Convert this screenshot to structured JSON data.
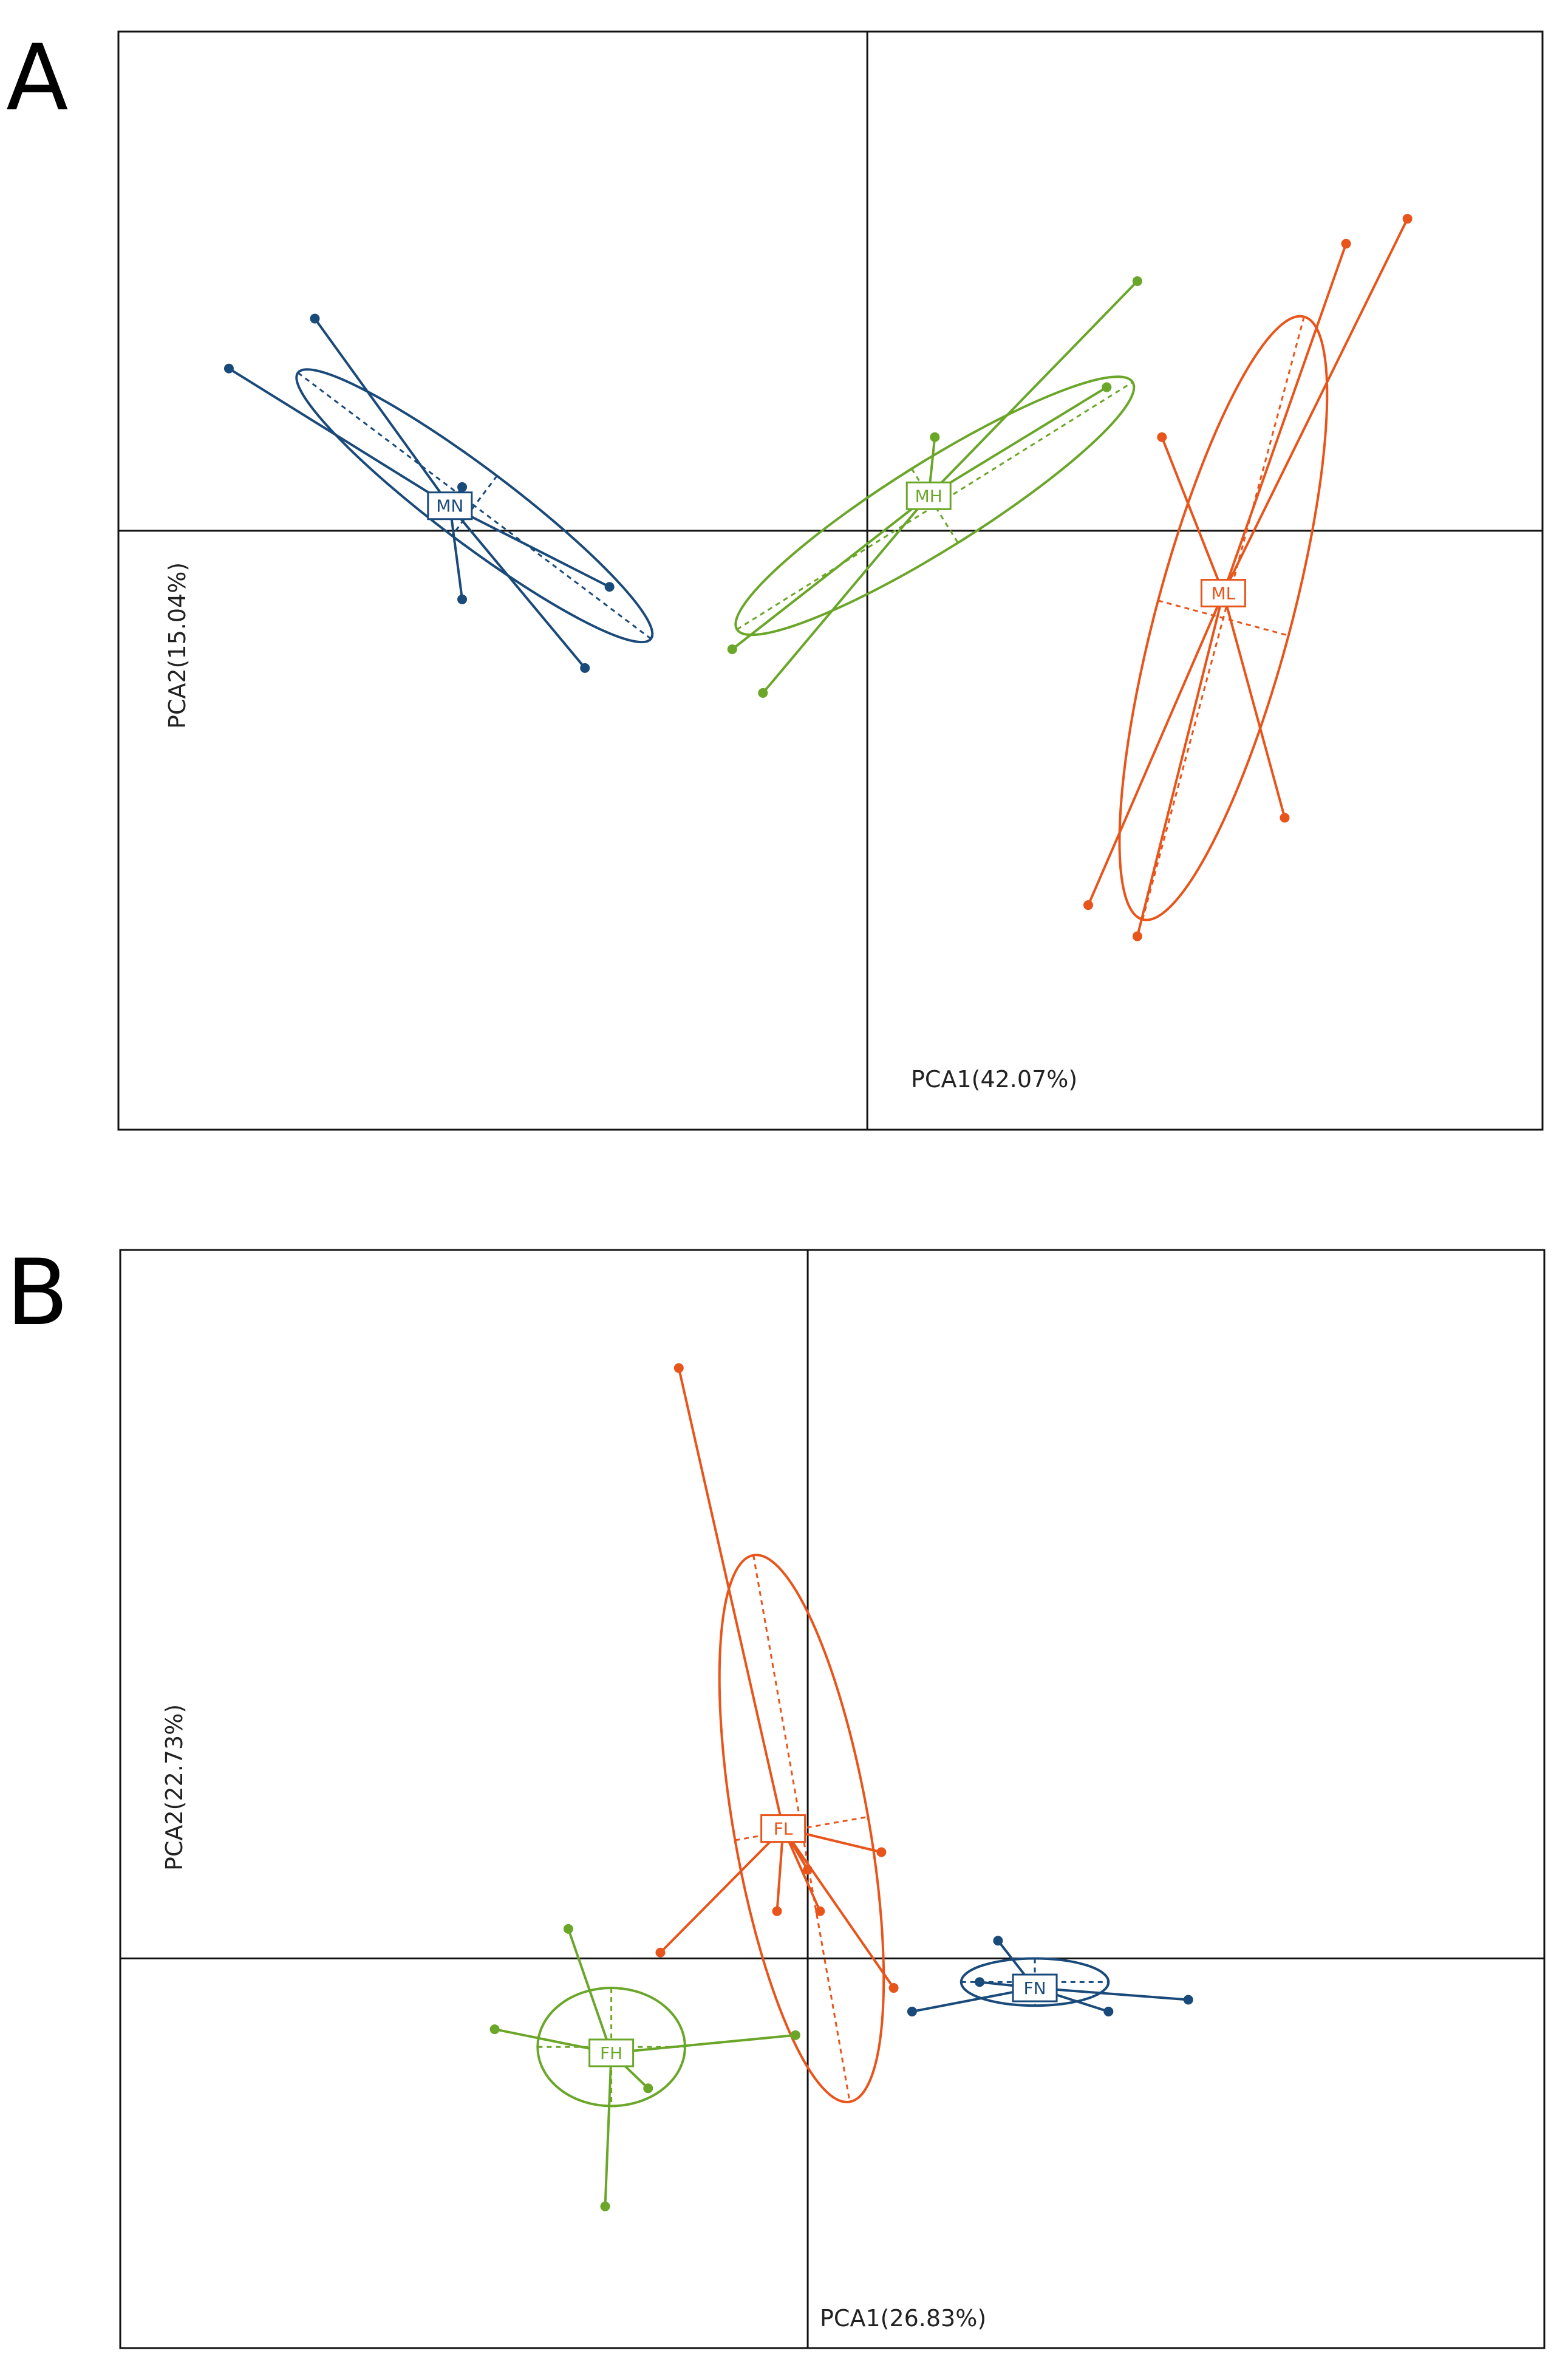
{
  "chart_data": [
    {
      "type": "scatter",
      "panel": "A",
      "xlabel": "PCA1(42.07%)",
      "ylabel": "PCA2(15.04%)",
      "xlim": [
        -6.1,
        5.5
      ],
      "ylim": [
        -4.8,
        4.0
      ],
      "axes_cross_at": [
        0,
        0
      ],
      "grid": false,
      "series": [
        {
          "name": "MN",
          "color": "#1a4a7a",
          "centroid": [
            -3.4,
            0.2
          ],
          "points": [
            [
              -5.2,
              1.3
            ],
            [
              -4.5,
              1.7
            ],
            [
              -3.3,
              0.35
            ],
            [
              -3.3,
              -0.55
            ],
            [
              -2.1,
              -0.45
            ],
            [
              -2.3,
              -1.1
            ]
          ],
          "ellipse": {
            "cx": -3.2,
            "cy": 0.2,
            "rx": 1.8,
            "ry": 0.3,
            "angle_deg": 37
          }
        },
        {
          "name": "MH",
          "color": "#6aa628",
          "centroid": [
            0.5,
            0.28
          ],
          "points": [
            [
              -1.1,
              -0.95
            ],
            [
              -0.85,
              -1.3
            ],
            [
              0.55,
              0.75
            ],
            [
              2.2,
              2.0
            ],
            [
              1.95,
              1.15
            ]
          ],
          "ellipse": {
            "cx": 0.55,
            "cy": 0.2,
            "rx": 1.9,
            "ry": 0.35,
            "angle_deg": -32
          }
        },
        {
          "name": "ML",
          "color": "#e8541a",
          "centroid": [
            2.9,
            -0.5
          ],
          "points": [
            [
              2.4,
              0.75
            ],
            [
              3.9,
              2.3
            ],
            [
              4.4,
              2.5
            ],
            [
              3.4,
              -2.3
            ],
            [
              1.8,
              -3.0
            ],
            [
              2.2,
              -3.25
            ]
          ],
          "ellipse": {
            "cx": 2.9,
            "cy": -0.7,
            "rx": 0.55,
            "ry": 2.5,
            "angle_deg": 15
          }
        }
      ]
    },
    {
      "type": "scatter",
      "panel": "B",
      "xlabel": "PCA1(26.83%)",
      "ylabel": "PCA2(22.73%)",
      "xlim": [
        -5.6,
        6.0
      ],
      "ylim": [
        -3.3,
        6.0
      ],
      "axes_cross_at": [
        0,
        0
      ],
      "grid": false,
      "series": [
        {
          "name": "FL",
          "color": "#e8541a",
          "centroid": [
            -0.2,
            1.1
          ],
          "points": [
            [
              -1.05,
              5.0
            ],
            [
              0.6,
              0.9
            ],
            [
              0.0,
              0.75
            ],
            [
              -0.25,
              0.4
            ],
            [
              0.1,
              0.4
            ],
            [
              -1.2,
              0.05
            ],
            [
              0.7,
              -0.25
            ]
          ],
          "ellipse": {
            "cx": -0.05,
            "cy": 1.1,
            "rx": 0.55,
            "ry": 2.35,
            "angle_deg": -10
          }
        },
        {
          "name": "FH",
          "color": "#6aa628",
          "centroid": [
            -1.6,
            -0.8
          ],
          "points": [
            [
              -1.95,
              0.25
            ],
            [
              -2.55,
              -0.6
            ],
            [
              -1.7,
              -0.85
            ],
            [
              -1.3,
              -1.1
            ],
            [
              -0.1,
              -0.65
            ],
            [
              -1.65,
              -2.1
            ]
          ],
          "ellipse": {
            "cx": -1.6,
            "cy": -0.75,
            "rx": 0.6,
            "ry": 0.5,
            "angle_deg": 0
          }
        },
        {
          "name": "FN",
          "color": "#1a4a7a",
          "centroid": [
            1.85,
            -0.25
          ],
          "points": [
            [
              1.55,
              0.15
            ],
            [
              1.4,
              -0.2
            ],
            [
              0.85,
              -0.45
            ],
            [
              2.45,
              -0.45
            ],
            [
              3.1,
              -0.35
            ]
          ],
          "ellipse": {
            "cx": 1.85,
            "cy": -0.2,
            "rx": 0.6,
            "ry": 0.2,
            "angle_deg": 0
          }
        }
      ]
    }
  ],
  "panels": [
    {
      "letter": "A"
    },
    {
      "letter": "B"
    }
  ]
}
